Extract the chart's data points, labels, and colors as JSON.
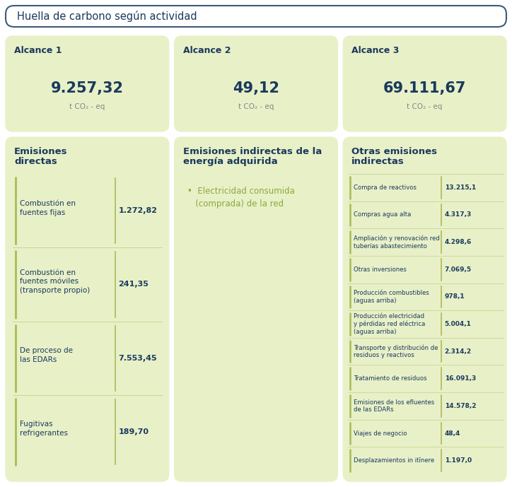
{
  "title": "Huella de carbono según actividad",
  "bg_color": "#ffffff",
  "title_box_border": "#3d5a7a",
  "card_bg": "#e8f0c8",
  "text_dark": "#1a3a5c",
  "text_green": "#8aaa3a",
  "bar_color": "#aabb55",
  "sep_color": "#c8d890",
  "alcances": [
    {
      "label": "Alcance 1",
      "value": "9.257,32",
      "unit": "t CO₂ - eq"
    },
    {
      "label": "Alcance 2",
      "value": "49,12",
      "unit": "t CO₂ - eq"
    },
    {
      "label": "Alcance 3",
      "value": "69.111,67",
      "unit": "t CO₂ - eq"
    }
  ],
  "emisiones_directas": {
    "title_line1": "Emisiones",
    "title_line2": "directas",
    "items": [
      {
        "label": "Combustión en\nfuentes fijas",
        "value": "1.272,82"
      },
      {
        "label": "Combustión en\nfuentes móviles\n(transporte propio)",
        "value": "241,35"
      },
      {
        "label": "De proceso de\nlas EDARs",
        "value": "7.553,45"
      },
      {
        "label": "Fugitivas\nrefrigerantes",
        "value": "189,70"
      }
    ]
  },
  "emisiones_indirectas": {
    "title_line1": "Emisiones indirectas de la",
    "title_line2": "energía adquirida",
    "item_label": "•  Electricidad consumida\n   (comprada) de la red"
  },
  "otras_emisiones": {
    "title_line1": "Otras emisiones",
    "title_line2": "indirectas",
    "items": [
      {
        "label": "Compra de reactivos",
        "value": "13.215,1"
      },
      {
        "label": "Compras agua alta",
        "value": "4.317,3"
      },
      {
        "label": "Ampliación y renovación red\ntuberías abastecimiento",
        "value": "4.298,6"
      },
      {
        "label": "Otras inversiones",
        "value": "7.069,5"
      },
      {
        "label": "Producción combustibles\n(aguas arriba)",
        "value": "978,1"
      },
      {
        "label": "Producción electricidad\ny pérdidas red eléctrica\n(aguas arriba)",
        "value": "5.004,1"
      },
      {
        "label": "Transporte y distribución de\nresiduos y reactivos",
        "value": "2.314,2"
      },
      {
        "label": "Tratamiento de residuos",
        "value": "16.091,3"
      },
      {
        "label": "Emisiones de los efluentes\nde las EDARs",
        "value": "14.578,2"
      },
      {
        "label": "Viajes de negocio",
        "value": "48,4"
      },
      {
        "label": "Desplazamientos in itĭnere",
        "value": "1.197,0"
      }
    ]
  }
}
